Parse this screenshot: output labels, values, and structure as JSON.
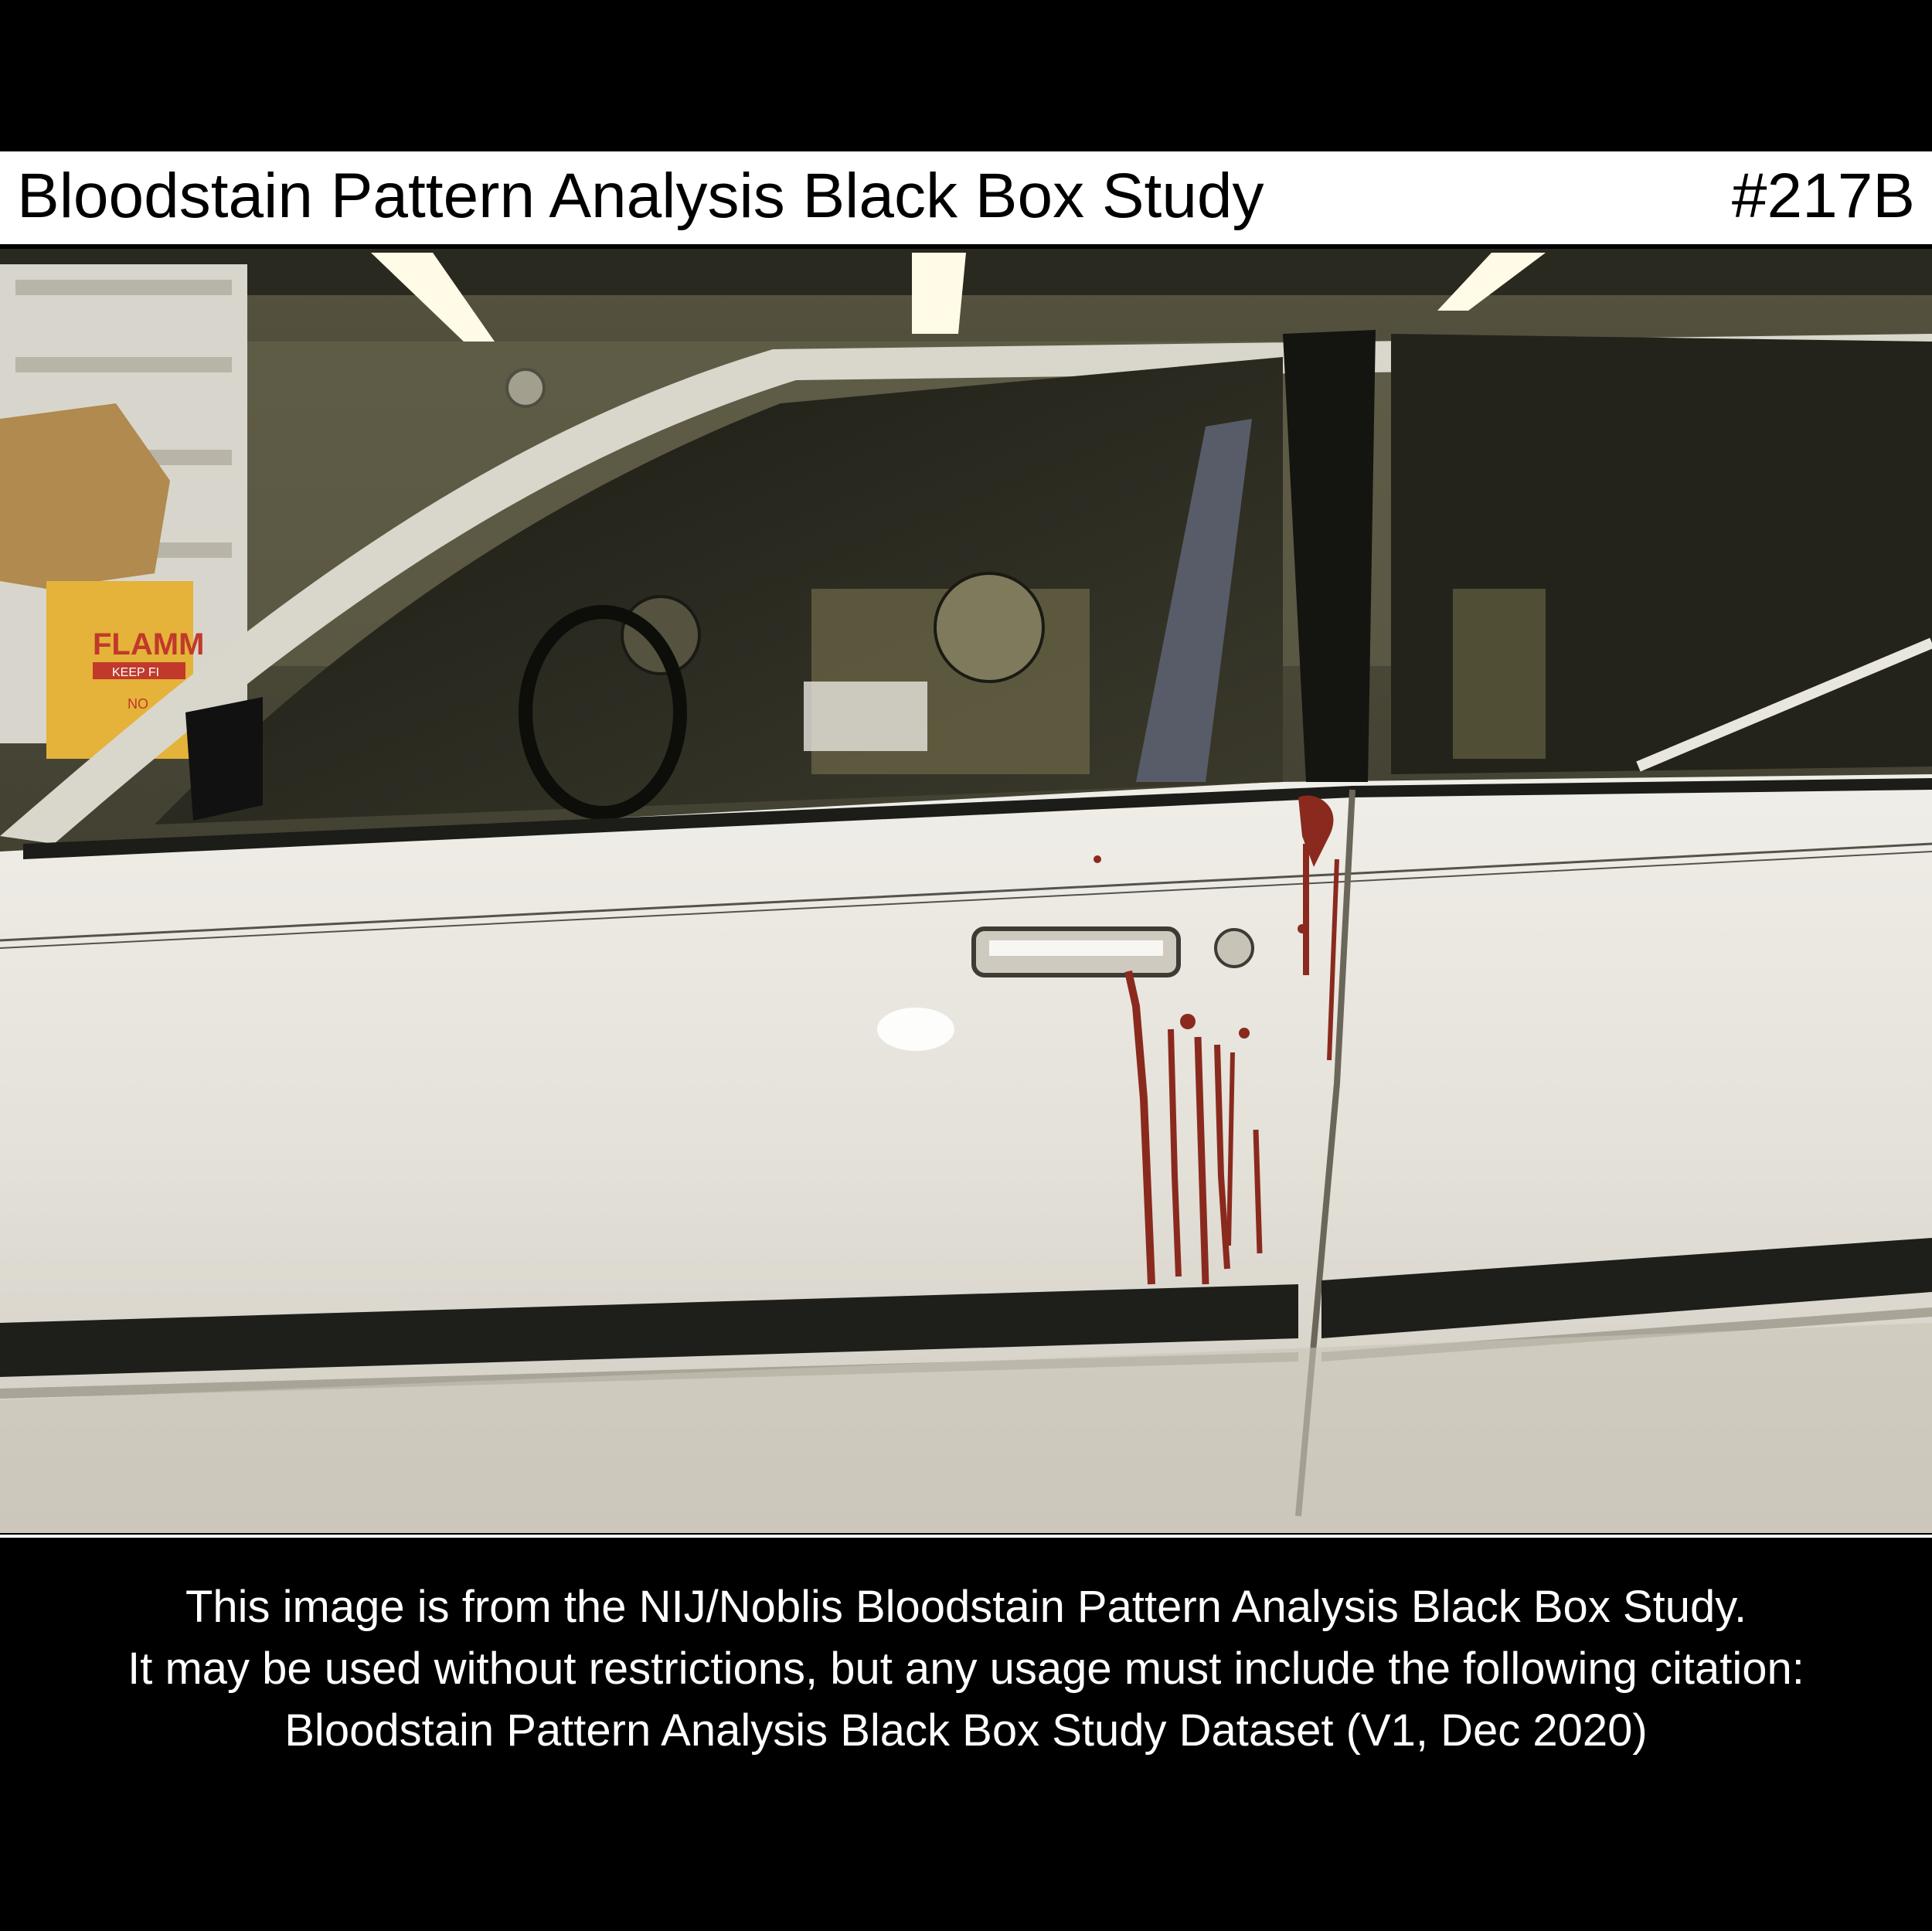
{
  "header": {
    "title": "Bloodstain Pattern Analysis Black Box Study",
    "image_id": "#217B"
  },
  "photo": {
    "sign_text": "FLAMM",
    "sign_subtext": "KEEP FI",
    "sign_small": "NO"
  },
  "caption": {
    "line1": "This image is from the NIJ/Noblis Bloodstain Pattern Analysis Black Box Study.",
    "line2": "It may be used without restrictions, but any usage must include the following citation:",
    "line3": "Bloodstain Pattern Analysis Black Box Study Dataset (V1, Dec 2020)"
  },
  "colors": {
    "background": "#000000",
    "title_bar": "#ffffff",
    "car_body": "#e6e3dc",
    "blood": "#8a2a1e"
  }
}
